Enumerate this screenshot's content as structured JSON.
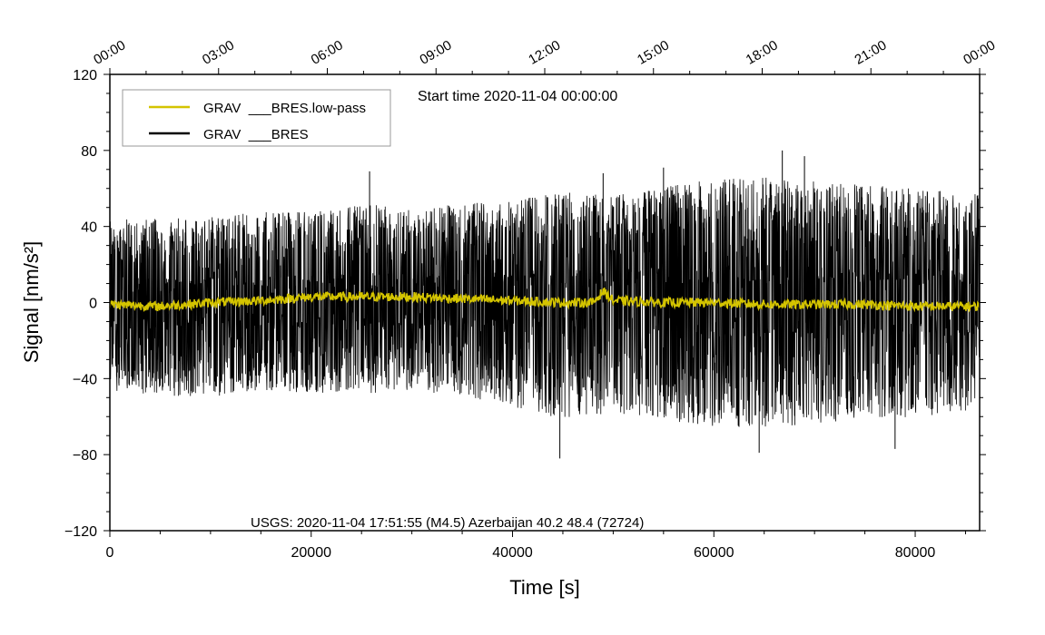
{
  "chart_data": {
    "type": "line",
    "xlabel": "Time [s]",
    "ylabel": "Signal [nm/s²]",
    "xlim": [
      0,
      86400
    ],
    "ylim": [
      -120,
      120
    ],
    "x_ticks": [
      0,
      20000,
      40000,
      60000,
      80000
    ],
    "x_tick_labels": [
      "0",
      "20000",
      "40000",
      "60000",
      "80000"
    ],
    "y_ticks": [
      -120,
      -80,
      -40,
      0,
      40,
      80,
      120
    ],
    "y_tick_labels": [
      "−120",
      "−80",
      "−40",
      "0",
      "40",
      "80",
      "120"
    ],
    "top_axis": {
      "tick_values_s": [
        0,
        10800,
        21600,
        32400,
        43200,
        54000,
        64800,
        75600,
        86400
      ],
      "tick_labels": [
        "00:00",
        "03:00",
        "06:00",
        "09:00",
        "12:00",
        "15:00",
        "18:00",
        "21:00",
        "00:00"
      ]
    },
    "annotation": "Start time 2020-11-04 00:00:00",
    "footnote": "USGS: 2020-11-04 17:51:55 (M4.5) Azerbaijan 40.2 48.4 (72724)",
    "legend": [
      {
        "label": "GRAV  ___BRES.low-pass",
        "color": "#d4c400"
      },
      {
        "label": "GRAV  ___BRES",
        "color": "#000000"
      }
    ],
    "series": [
      {
        "name": "GRAV  ___BRES",
        "color": "#000000",
        "x": [
          0,
          5000,
          10000,
          15000,
          20000,
          25000,
          30000,
          35000,
          40000,
          45000,
          50000,
          55000,
          60000,
          65000,
          70000,
          75000,
          80000,
          86400
        ],
        "upper_envelope": [
          45,
          44,
          45,
          48,
          48,
          52,
          50,
          52,
          55,
          58,
          58,
          62,
          65,
          66,
          64,
          62,
          60,
          58
        ],
        "lower_envelope": [
          -46,
          -50,
          -50,
          -46,
          -48,
          -48,
          -46,
          -50,
          -55,
          -62,
          -58,
          -62,
          -65,
          -66,
          -64,
          -62,
          -60,
          -58
        ],
        "peaks": [
          {
            "x": 25800,
            "y": 69
          },
          {
            "x": 44700,
            "y": -82
          },
          {
            "x": 49000,
            "y": 68
          },
          {
            "x": 55000,
            "y": 71
          },
          {
            "x": 64500,
            "y": -79
          },
          {
            "x": 66800,
            "y": 80
          },
          {
            "x": 69000,
            "y": 77
          },
          {
            "x": 78000,
            "y": -77
          }
        ]
      },
      {
        "name": "GRAV  ___BRES.low-pass",
        "color": "#d4c400",
        "x": [
          0,
          5000,
          10000,
          15000,
          20000,
          25000,
          30000,
          35000,
          40000,
          45000,
          48000,
          49000,
          50000,
          55000,
          60000,
          65000,
          70000,
          75000,
          80000,
          86400
        ],
        "values": [
          -1,
          -2,
          0,
          1,
          3,
          3,
          3,
          2,
          1,
          0,
          0,
          6,
          1,
          0,
          0,
          -1,
          -1,
          -1,
          -2,
          -2
        ]
      }
    ]
  }
}
